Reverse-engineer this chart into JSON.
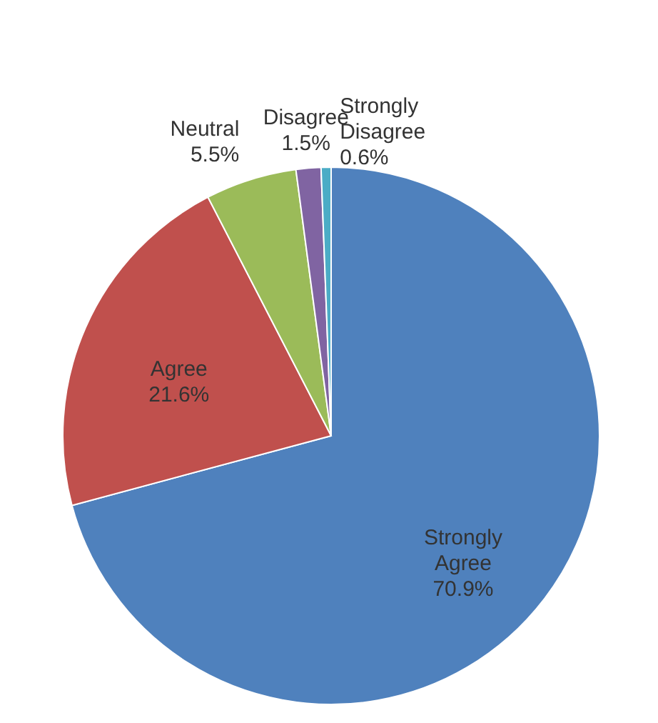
{
  "chart_data": {
    "type": "pie",
    "categories": [
      "Strongly Agree",
      "Agree",
      "Neutral",
      "Disagree",
      "Strongly Disagree"
    ],
    "values": [
      70.9,
      21.6,
      5.5,
      1.5,
      0.6
    ],
    "value_labels": [
      "70.9%",
      "21.6%",
      "5.5%",
      "1.5%",
      "0.6%"
    ],
    "colors": [
      "#4f81bd",
      "#c0504d",
      "#9bbb59",
      "#8064a2",
      "#4bacc6"
    ]
  }
}
